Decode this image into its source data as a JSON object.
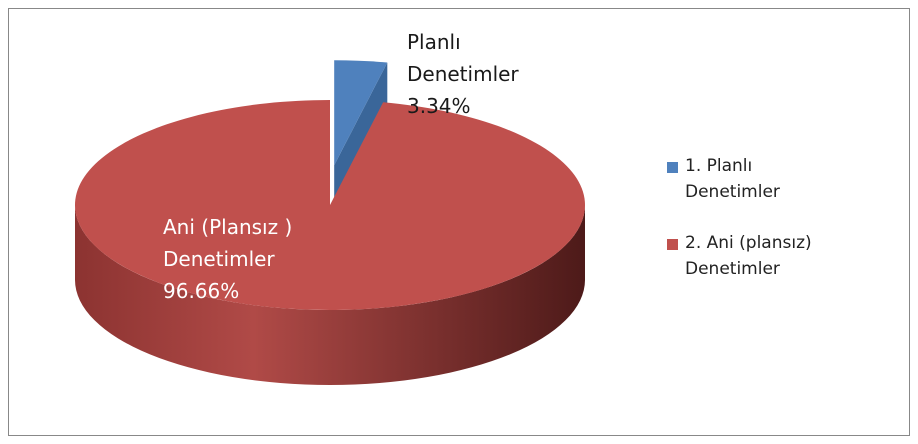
{
  "chart_data": {
    "type": "pie3d",
    "categories": [
      "1. Planlı Denetimler",
      "2. Ani (plansız) Denetimler"
    ],
    "label_names": [
      "Planlı Denetimler",
      "Ani (Plansız ) Denetimler"
    ],
    "values": [
      3.34,
      96.66
    ],
    "value_labels": [
      "3.34%",
      "96.66%"
    ],
    "colors": [
      "#4f81bd",
      "#c0504d"
    ],
    "legend": "right"
  }
}
